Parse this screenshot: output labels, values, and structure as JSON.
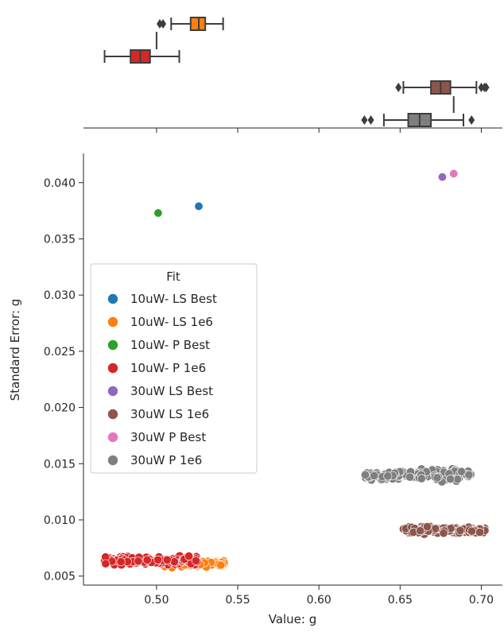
{
  "chart_data": {
    "type": "scatter",
    "xlabel": "Value: g",
    "ylabel": "Standard Error: g",
    "xlim": [
      0.455,
      0.713
    ],
    "ylim": [
      0.0042,
      0.0426
    ],
    "xticks": [
      "0.50",
      "0.55",
      "0.60",
      "0.65",
      "0.70"
    ],
    "yticks": [
      "0.005",
      "0.010",
      "0.015",
      "0.020",
      "0.025",
      "0.030",
      "0.035",
      "0.040"
    ],
    "grid": false,
    "legend": {
      "title": "Fit",
      "placement": "center-left"
    },
    "series": [
      {
        "name": "10uW- LS Best",
        "color": "#1f77b4",
        "points": [
          [
            0.526,
            0.0379
          ]
        ]
      },
      {
        "name": "10uW- LS 1e6",
        "color": "#ff7f0e",
        "cloud": {
          "x_range": [
            0.505,
            0.542
          ],
          "y_center": 0.0061,
          "y_spread": 0.0007
        },
        "box": {
          "whisker_low": 0.509,
          "q1": 0.521,
          "median": 0.526,
          "q3": 0.53,
          "whisker_high": 0.541,
          "outliers": [
            0.502,
            0.504
          ]
        }
      },
      {
        "name": "10uW- P Best",
        "color": "#2ca02c",
        "points": [
          [
            0.501,
            0.0373
          ]
        ]
      },
      {
        "name": "10uW- P 1e6",
        "color": "#d62728",
        "cloud": {
          "x_range": [
            0.468,
            0.525
          ],
          "y_center": 0.0064,
          "y_spread": 0.0009
        },
        "box": {
          "whisker_low": 0.468,
          "q1": 0.484,
          "median": 0.49,
          "q3": 0.496,
          "whisker_high": 0.514,
          "outliers": []
        }
      },
      {
        "name": "30uW LS Best",
        "color": "#9467bd",
        "points": [
          [
            0.676,
            0.0405
          ]
        ]
      },
      {
        "name": "30uW LS 1e6",
        "color": "#8c564b",
        "cloud": {
          "x_range": [
            0.652,
            0.703
          ],
          "y_center": 0.0091,
          "y_spread": 0.0007
        },
        "box": {
          "whisker_low": 0.652,
          "q1": 0.669,
          "median": 0.675,
          "q3": 0.681,
          "whisker_high": 0.697,
          "outliers": [
            0.649,
            0.7,
            0.702,
            0.703
          ]
        }
      },
      {
        "name": "30uW P Best",
        "color": "#e377c2",
        "points": [
          [
            0.683,
            0.0408
          ]
        ]
      },
      {
        "name": "30uW P 1e6",
        "color": "#7f7f7f",
        "cloud": {
          "x_range": [
            0.628,
            0.694
          ],
          "y_center": 0.014,
          "y_spread": 0.0012
        },
        "box": {
          "whisker_low": 0.64,
          "q1": 0.655,
          "median": 0.662,
          "q3": 0.669,
          "whisker_high": 0.689,
          "outliers": [
            0.628,
            0.632,
            0.694
          ]
        }
      }
    ]
  }
}
